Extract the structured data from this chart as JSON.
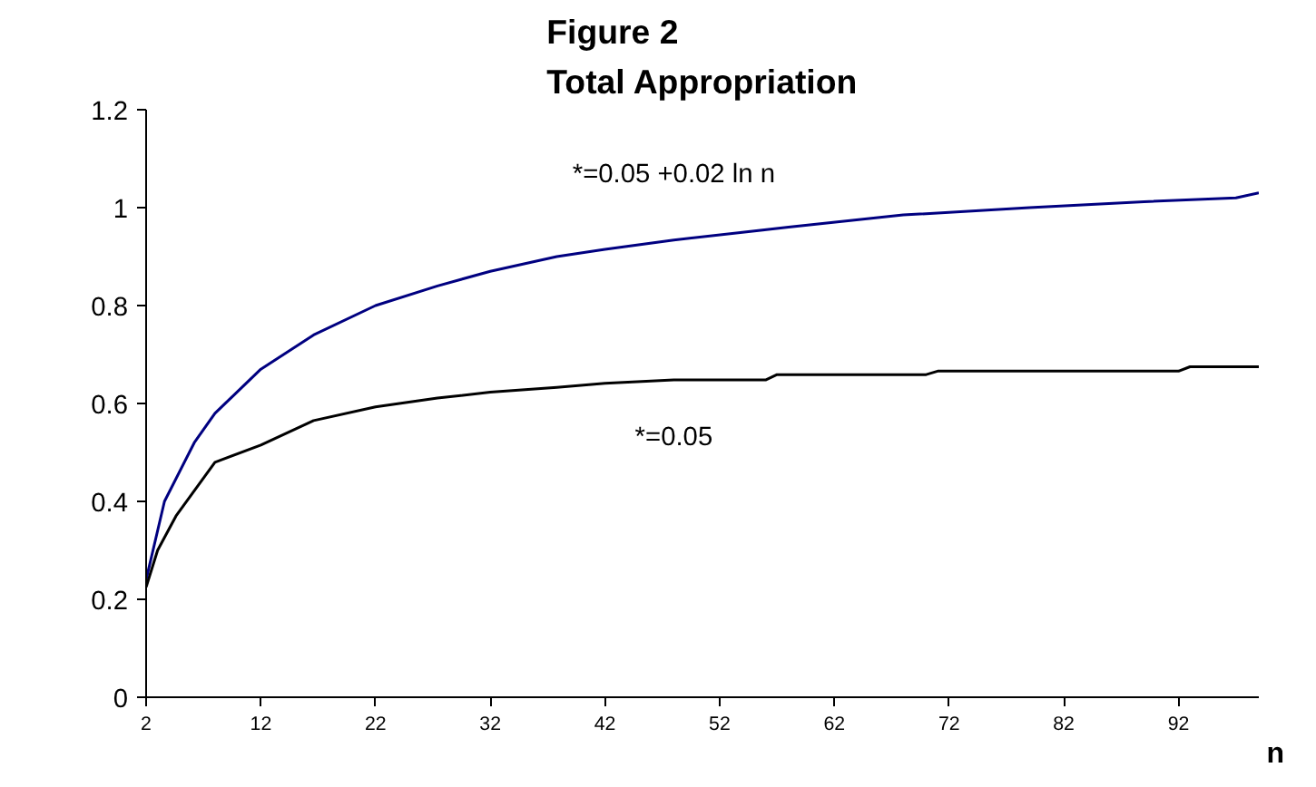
{
  "chart_data": {
    "type": "line",
    "title": "Figure 2\nTotal Appropriation",
    "xlabel": "n",
    "xlim": [
      2,
      99
    ],
    "xticks": [
      2,
      12,
      22,
      32,
      42,
      52,
      62,
      72,
      82,
      92
    ],
    "ylim": [
      0,
      1.2
    ],
    "yticks": [
      0,
      0.2,
      0.4,
      0.6,
      0.8,
      1,
      1.2
    ],
    "grid": false,
    "series": [
      {
        "name": "*=0.05 +0.02 ln n",
        "color": "#000080",
        "x": [
          2,
          3.6,
          6.2,
          8,
          12,
          16.6,
          22,
          27.4,
          32,
          37.8,
          42,
          48,
          58,
          68,
          79,
          89,
          97,
          99
        ],
        "values": [
          0.24,
          0.4,
          0.52,
          0.58,
          0.67,
          0.74,
          0.8,
          0.84,
          0.87,
          0.9,
          0.915,
          0.934,
          0.96,
          0.985,
          1.0,
          1.012,
          1.02,
          1.03
        ]
      },
      {
        "name": "*=0.05",
        "color": "#000000",
        "x": [
          2,
          3,
          4.6,
          8,
          12,
          16.6,
          22,
          27.4,
          32,
          37.8,
          42,
          48,
          56,
          57,
          70,
          71,
          92,
          93,
          99
        ],
        "values": [
          0.225,
          0.3,
          0.37,
          0.48,
          0.515,
          0.565,
          0.593,
          0.611,
          0.623,
          0.633,
          0.641,
          0.648,
          0.648,
          0.659,
          0.659,
          0.666,
          0.666,
          0.675,
          0.675
        ]
      }
    ]
  }
}
